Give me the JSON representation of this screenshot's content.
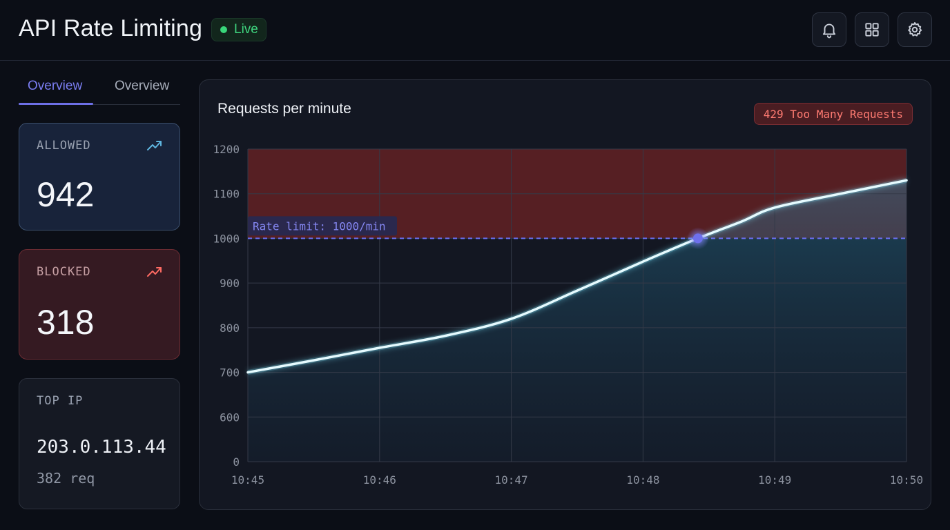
{
  "header": {
    "title": "API Rate Limiting",
    "status": "Live",
    "icons": [
      "bell-icon",
      "grid-icon",
      "gear-icon"
    ]
  },
  "tabs": [
    {
      "label": "Overview",
      "active": true
    },
    {
      "label": "Overview",
      "active": false
    }
  ],
  "stats": {
    "allowed": {
      "label": "ALLOWED",
      "value": "942",
      "trend_icon": "trending-up-icon"
    },
    "blocked": {
      "label": "BLOCKED",
      "value": "318",
      "trend_icon": "trending-up-icon"
    },
    "top_ip": {
      "label": "TOP IP",
      "value": "203.0.113.44",
      "sub": "382 req"
    }
  },
  "panel": {
    "title": "Requests per minute",
    "error_badge": "429 Too Many Requests"
  },
  "colors": {
    "accent": "#6d6fe6",
    "live": "#39d67a",
    "danger": "#ff7b72",
    "line": "#e6fbff"
  },
  "chart_data": {
    "type": "line",
    "x": [
      "10:45",
      "10:45:30",
      "10:46",
      "10:46:30",
      "10:47",
      "10:47:30",
      "10:48",
      "10:48:25",
      "10:48:45",
      "10:49",
      "10:49:30",
      "10:50"
    ],
    "x_ticks": [
      "10:45",
      "10:46",
      "10:47",
      "10:48",
      "10:49",
      "10:50"
    ],
    "y_ticks": [
      "0",
      "600",
      "700",
      "800",
      "900",
      "1000",
      "1100",
      "1200"
    ],
    "series": [
      {
        "values": [
          700,
          727,
          755,
          782,
          820,
          883,
          948,
          1000,
          1038,
          1069,
          1100,
          1130
        ]
      }
    ],
    "threshold": {
      "value": 1000,
      "label": "Rate limit: 1000/min"
    },
    "grid": true
  }
}
